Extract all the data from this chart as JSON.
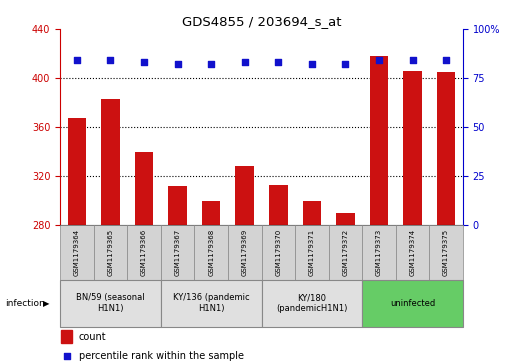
{
  "title": "GDS4855 / 203694_s_at",
  "samples": [
    "GSM1179364",
    "GSM1179365",
    "GSM1179366",
    "GSM1179367",
    "GSM1179368",
    "GSM1179369",
    "GSM1179370",
    "GSM1179371",
    "GSM1179372",
    "GSM1179373",
    "GSM1179374",
    "GSM1179375"
  ],
  "counts": [
    367,
    383,
    340,
    312,
    300,
    328,
    313,
    300,
    290,
    418,
    406,
    405
  ],
  "percentile_ranks": [
    84,
    84,
    83,
    82,
    82,
    83,
    83,
    82,
    82,
    84,
    84,
    84
  ],
  "ylim_left": [
    280,
    440
  ],
  "ylim_right": [
    0,
    100
  ],
  "yticks_left": [
    280,
    320,
    360,
    400,
    440
  ],
  "yticks_right": [
    0,
    25,
    50,
    75,
    100
  ],
  "bar_color": "#cc1111",
  "dot_color": "#1111cc",
  "groups": [
    {
      "label": "BN/59 (seasonal\nH1N1)",
      "start": 0,
      "end": 3,
      "color": "#e0e0e0"
    },
    {
      "label": "KY/136 (pandemic\nH1N1)",
      "start": 3,
      "end": 6,
      "color": "#e0e0e0"
    },
    {
      "label": "KY/180\n(pandemicH1N1)",
      "start": 6,
      "end": 9,
      "color": "#e0e0e0"
    },
    {
      "label": "uninfected",
      "start": 9,
      "end": 12,
      "color": "#66cc66"
    }
  ],
  "infection_label": "infection",
  "legend_count_label": "count",
  "legend_percentile_label": "percentile rank within the sample",
  "left_axis_color": "#cc0000",
  "right_axis_color": "#0000cc",
  "sample_box_color": "#d3d3d3",
  "grid_yticks": [
    320,
    360,
    400
  ]
}
